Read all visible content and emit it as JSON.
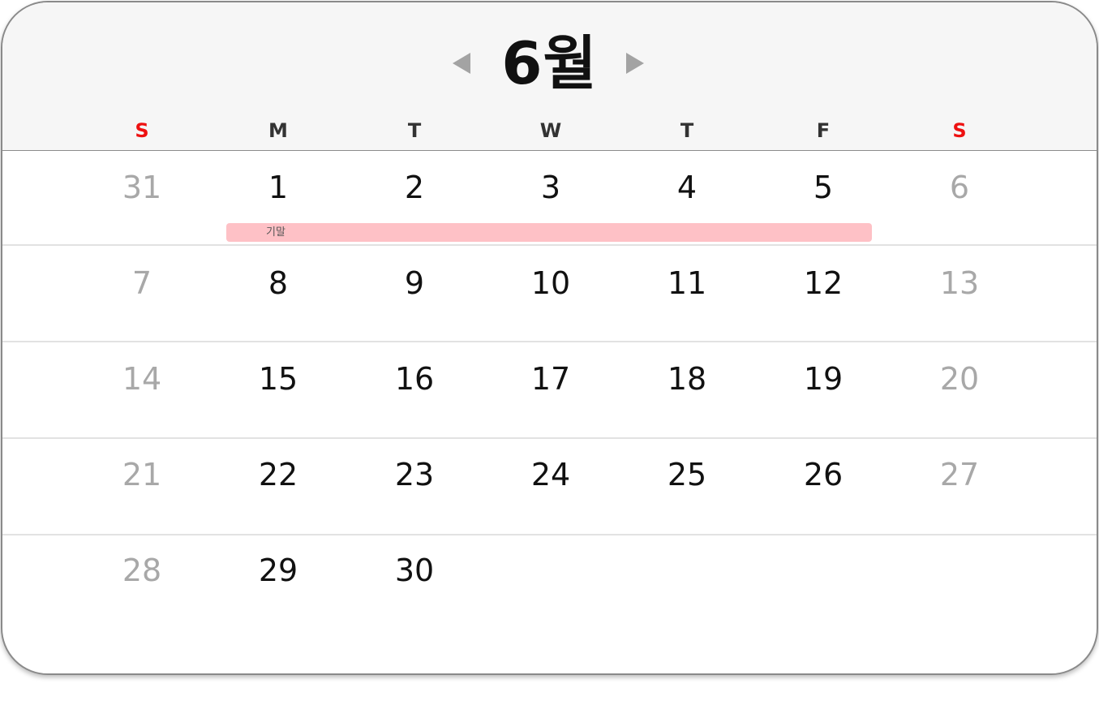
{
  "calendar": {
    "month_title": "6월",
    "weekdays": [
      "S",
      "M",
      "T",
      "W",
      "T",
      "F",
      "S"
    ],
    "weeks": [
      [
        "31",
        "1",
        "2",
        "3",
        "4",
        "5",
        "6"
      ],
      [
        "7",
        "8",
        "9",
        "10",
        "11",
        "12",
        "13"
      ],
      [
        "14",
        "15",
        "16",
        "17",
        "18",
        "19",
        "20"
      ],
      [
        "21",
        "22",
        "23",
        "24",
        "25",
        "26",
        "27"
      ],
      [
        "28",
        "29",
        "30",
        "",
        "",
        "",
        ""
      ]
    ],
    "event": {
      "label": "기말"
    }
  },
  "colors": {
    "weekend_header": "#ee1111",
    "weekday_header": "#333333",
    "muted_day": "#a8a8a8",
    "day": "#111111",
    "event_bar": "#fec1c6",
    "header_bg": "#f6f6f6"
  },
  "icons": {
    "prev": "triangle-left-icon",
    "next": "triangle-right-icon"
  }
}
